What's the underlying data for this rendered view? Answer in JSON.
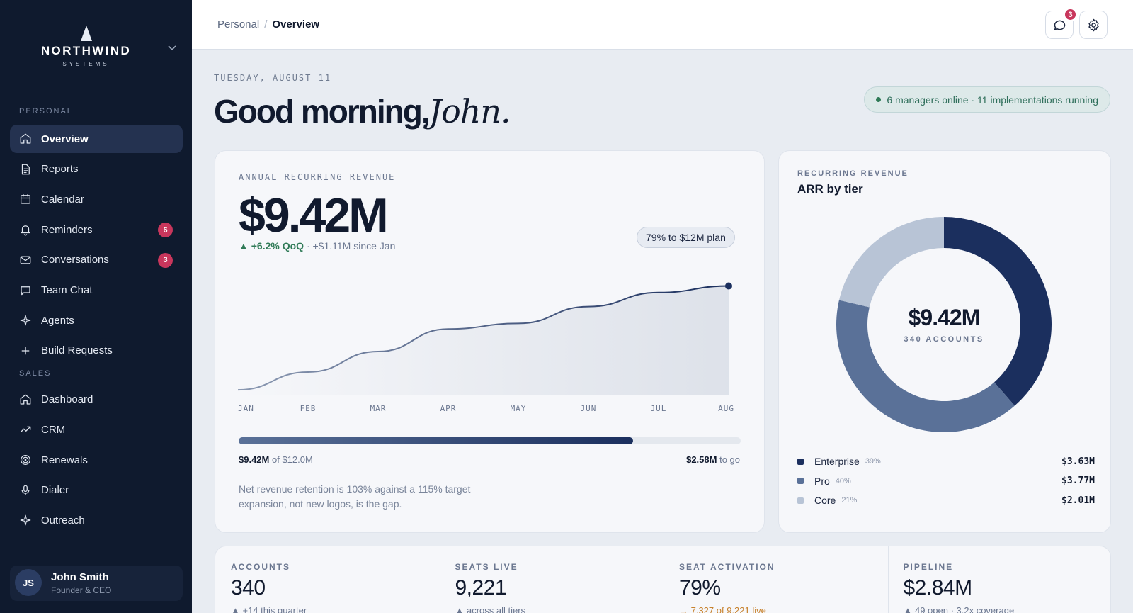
{
  "brand": {
    "name": "NORTHWIND",
    "sub": "SYSTEMS"
  },
  "sidebar": {
    "sections": [
      {
        "label": "PERSONAL",
        "items": [
          {
            "label": "Overview",
            "icon": "home-icon",
            "active": true
          },
          {
            "label": "Reports",
            "icon": "document-icon"
          },
          {
            "label": "Calendar",
            "icon": "calendar-icon"
          },
          {
            "label": "Reminders",
            "icon": "bell-icon",
            "badge": "6"
          },
          {
            "label": "Conversations",
            "icon": "mail-icon",
            "badge": "3"
          },
          {
            "label": "Team Chat",
            "icon": "chat-icon"
          },
          {
            "label": "Agents",
            "icon": "sparkle-icon"
          },
          {
            "label": "Build Requests",
            "icon": "plus-icon"
          }
        ]
      },
      {
        "label": "SALES",
        "items": [
          {
            "label": "Dashboard",
            "icon": "home-icon"
          },
          {
            "label": "CRM",
            "icon": "trend-icon"
          },
          {
            "label": "Renewals",
            "icon": "target-icon"
          },
          {
            "label": "Dialer",
            "icon": "mic-icon"
          },
          {
            "label": "Outreach",
            "icon": "sparkle-icon"
          }
        ]
      }
    ],
    "user": {
      "initials": "JS",
      "name": "John Smith",
      "role": "Founder & CEO"
    }
  },
  "header": {
    "breadcrumb": {
      "parent": "Personal",
      "separator": "/",
      "current": "Overview"
    },
    "notifications_count": "3"
  },
  "main": {
    "date": "TUESDAY, AUGUST 11",
    "greeting": "Good morning,",
    "greeting_name": "John.",
    "status": "6 managers online · 11 implementations running"
  },
  "arr_card": {
    "label": "ANNUAL RECURRING REVENUE",
    "value": "$9.42M",
    "delta": "▲ +6.2% QoQ",
    "delta_extra": " · +$1.11M since Jan",
    "plan_pill": "79% to $12M plan",
    "progress": {
      "fraction": 0.785,
      "current": "$9.42M",
      "of_text": " of $12.0M",
      "remaining": "$2.58M",
      "to_go": " to go"
    },
    "note": "Net revenue retention is 103% against a 115% target — expansion, not new logos, is the gap."
  },
  "chart_data": [
    {
      "type": "line",
      "x": [
        "JAN",
        "FEB",
        "MAR",
        "APR",
        "MAY",
        "JUN",
        "JUL",
        "AUG"
      ],
      "series": [
        {
          "values": [
            8.31,
            8.5,
            8.72,
            8.96,
            9.02,
            9.2,
            9.35,
            9.42
          ]
        }
      ],
      "ylim": [
        8.25,
        9.5
      ],
      "grid": false,
      "color": "#1b2f5e"
    },
    {
      "type": "pie",
      "title": "ARR by tier",
      "center_value": "$9.42M",
      "center_sub": "340 ACCOUNTS",
      "slices": [
        {
          "name": "Enterprise",
          "pct_label": "39%",
          "value": 3.63,
          "amount": "$3.63M",
          "color": "#1b2f5e"
        },
        {
          "name": "Pro",
          "pct_label": "40%",
          "value": 3.77,
          "amount": "$3.77M",
          "color": "#5a7198"
        },
        {
          "name": "Core",
          "pct_label": "21%",
          "value": 2.01,
          "amount": "$2.01M",
          "color": "#b8c4d6"
        }
      ]
    }
  ],
  "tier_card": {
    "label": "RECURRING REVENUE",
    "title": "ARR by tier"
  },
  "kpis": [
    {
      "label": "ACCOUNTS",
      "value": "340",
      "sub": "▲ +14 this quarter"
    },
    {
      "label": "SEATS LIVE",
      "value": "9,221",
      "sub": "▲ across all tiers"
    },
    {
      "label": "SEAT ACTIVATION",
      "value": "79%",
      "sub": "→ 7,327 of 9,221 live",
      "warn": true
    },
    {
      "label": "PIPELINE",
      "value": "$2.84M",
      "sub": "▲ 49 open · 3.2x coverage"
    }
  ]
}
